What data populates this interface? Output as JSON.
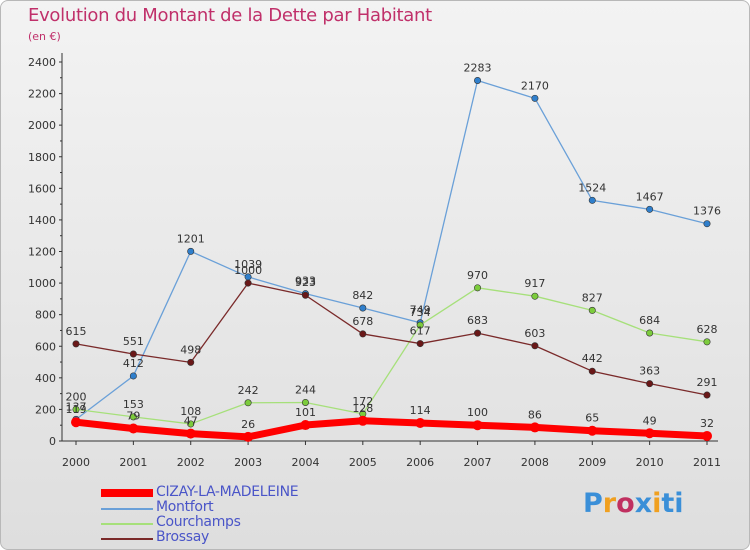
{
  "header": {
    "title": "Evolution du Montant de la Dette par Habitant",
    "subtitle": "(en €)"
  },
  "logo": {
    "text": "Proxiti",
    "colors": [
      "#3a8fd8",
      "#f0a020",
      "#c03060",
      "#3a8fd8",
      "#f0a020",
      "#3a8fd8",
      "#3a8fd8"
    ]
  },
  "chart_data": {
    "type": "line",
    "x": [
      "2000",
      "2001",
      "2002",
      "2003",
      "2004",
      "2005",
      "2006",
      "2007",
      "2008",
      "2009",
      "2010",
      "2011"
    ],
    "ylim": [
      0,
      2400
    ],
    "yticks": [
      "0",
      "200",
      "400",
      "600",
      "800",
      "1000",
      "1200",
      "1400",
      "1600",
      "1800",
      "2000",
      "2200",
      "2400"
    ],
    "grid": false,
    "legend": "bottom-left",
    "series": [
      {
        "name": "CIZAY-LA-MADELEINE",
        "color": "#ff0000",
        "marker": "#ff0000",
        "values": [
          119,
          79,
          47,
          26,
          101,
          128,
          114,
          100,
          86,
          65,
          49,
          32
        ]
      },
      {
        "name": "Montfort",
        "color": "#6aa0d8",
        "marker": "#2f7fcc",
        "values": [
          137,
          412,
          1201,
          1039,
          933,
          842,
          749,
          2283,
          2170,
          1524,
          1467,
          1376
        ]
      },
      {
        "name": "Courchamps",
        "color": "#a6e07a",
        "marker": "#7ccc3c",
        "values": [
          200,
          153,
          108,
          242,
          244,
          172,
          734,
          970,
          917,
          827,
          684,
          628
        ]
      },
      {
        "name": "Brossay",
        "color": "#7a2a2a",
        "marker": "#6a1818",
        "values": [
          615,
          551,
          498,
          1000,
          923,
          678,
          617,
          683,
          603,
          442,
          363,
          291
        ]
      }
    ]
  }
}
